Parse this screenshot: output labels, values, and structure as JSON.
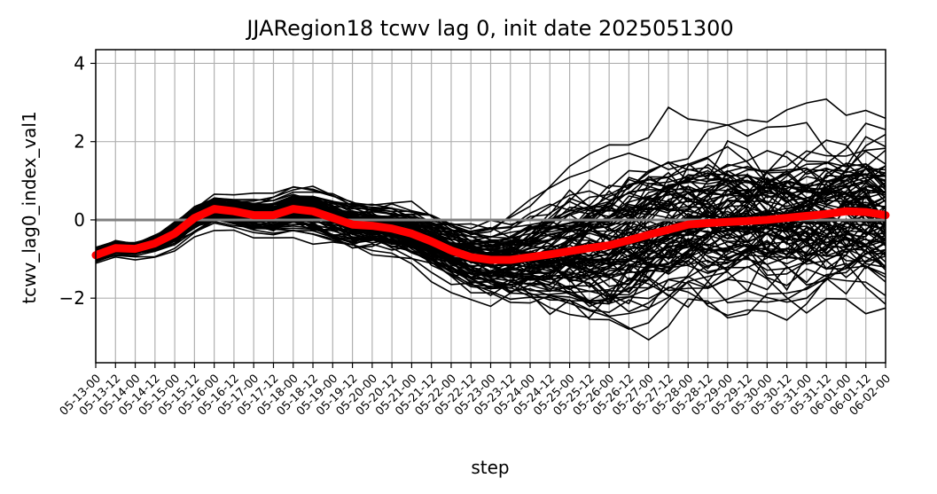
{
  "chart_data": {
    "type": "line",
    "title": "JJARegion18 tcwv lag 0, init date 2025051300",
    "xlabel": "step",
    "ylabel": "tcwv_lag0_index_val1",
    "x": [
      "05-13-00",
      "05-13-12",
      "05-14-00",
      "05-14-12",
      "05-15-00",
      "05-15-12",
      "05-16-00",
      "05-16-12",
      "05-17-00",
      "05-17-12",
      "05-18-00",
      "05-18-12",
      "05-19-00",
      "05-19-12",
      "05-20-00",
      "05-20-12",
      "05-21-00",
      "05-21-12",
      "05-22-00",
      "05-22-12",
      "05-23-00",
      "05-23-12",
      "05-24-00",
      "05-24-12",
      "05-25-00",
      "05-25-12",
      "05-26-00",
      "05-26-12",
      "05-27-00",
      "05-27-12",
      "05-28-00",
      "05-28-12",
      "05-29-00",
      "05-29-12",
      "05-30-00",
      "05-30-12",
      "05-31-00",
      "05-31-12",
      "06-01-00",
      "06-01-12",
      "06-02-00"
    ],
    "xlim": [
      "05-13-00",
      "06-02-00"
    ],
    "ylim": [
      -3.65,
      4.35
    ],
    "yticks": [
      -2,
      0,
      2,
      4
    ],
    "grid": "vertical",
    "reference_line": {
      "y": 0,
      "color": "#808080"
    },
    "ensemble": {
      "members": 100,
      "color": "#000000",
      "spread": [
        0.12,
        0.12,
        0.12,
        0.15,
        0.18,
        0.2,
        0.22,
        0.24,
        0.26,
        0.28,
        0.3,
        0.32,
        0.33,
        0.34,
        0.35,
        0.36,
        0.38,
        0.42,
        0.48,
        0.52,
        0.56,
        0.6,
        0.68,
        0.78,
        0.9,
        1.0,
        1.08,
        1.12,
        1.15,
        1.16,
        1.18,
        1.2,
        1.22,
        1.22,
        1.24,
        1.24,
        1.26,
        1.26,
        1.26,
        1.28,
        1.28
      ]
    },
    "series": [
      {
        "name": "",
        "color": "#ff0000",
        "values": [
          -0.9,
          -0.72,
          -0.74,
          -0.6,
          -0.35,
          0.05,
          0.28,
          0.22,
          0.12,
          0.12,
          0.28,
          0.22,
          0.05,
          -0.12,
          -0.15,
          -0.22,
          -0.35,
          -0.55,
          -0.78,
          -0.95,
          -1.02,
          -1.02,
          -0.95,
          -0.88,
          -0.8,
          -0.72,
          -0.65,
          -0.52,
          -0.38,
          -0.25,
          -0.12,
          -0.08,
          -0.05,
          -0.03,
          0.0,
          0.05,
          0.1,
          0.15,
          0.22,
          0.2,
          0.12
        ]
      }
    ]
  }
}
